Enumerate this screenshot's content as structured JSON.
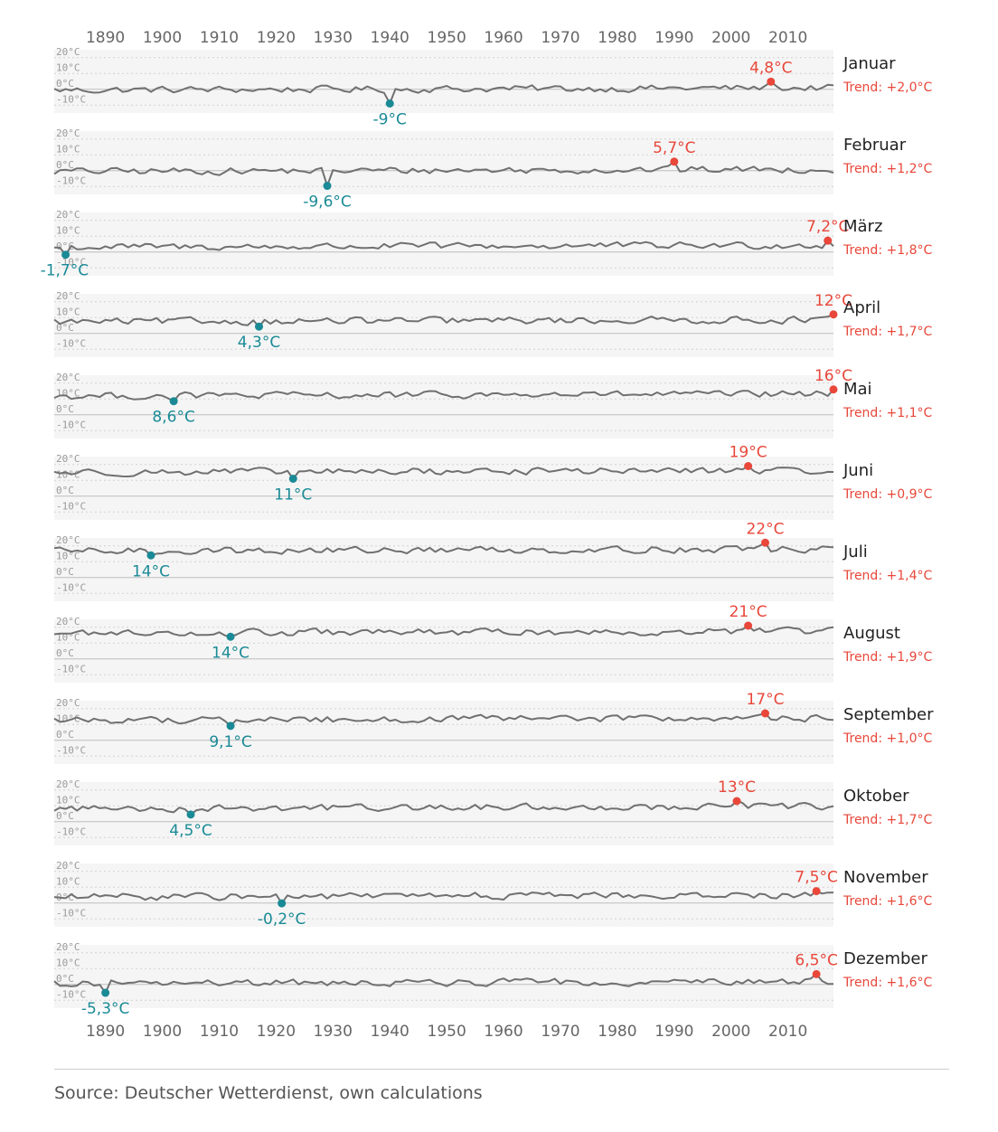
{
  "chart_data": {
    "type": "line",
    "title": "",
    "xlabel": "",
    "ylabel": "",
    "xlim": [
      1881,
      2018
    ],
    "ylim": [
      -15,
      25
    ],
    "x_ticks": [
      "1890",
      "1900",
      "1910",
      "1920",
      "1930",
      "1940",
      "1950",
      "1960",
      "1970",
      "1980",
      "1990",
      "2000",
      "2010"
    ],
    "y_ticks": [
      "20°C",
      "10°C",
      "0°C",
      "-10°C"
    ],
    "colors": {
      "line": "#707070",
      "max": "#e8473a",
      "min": "#1a8a96",
      "band": "#f5f5f5",
      "grid": "#d2d2d2",
      "tick": "#9a9a9a"
    },
    "series": [
      {
        "name": "Januar",
        "trend": "Trend: +2,0°C",
        "mean": 0,
        "max": {
          "year": 2007,
          "value": 4.8,
          "label": "4,8°C"
        },
        "min": {
          "year": 1940,
          "value": -9.0,
          "label": "-9°C"
        }
      },
      {
        "name": "Februar",
        "trend": "Trend: +1,2°C",
        "mean": 0,
        "max": {
          "year": 1990,
          "value": 5.7,
          "label": "5,7°C"
        },
        "min": {
          "year": 1929,
          "value": -9.6,
          "label": "-9,6°C"
        }
      },
      {
        "name": "März",
        "trend": "Trend: +1,8°C",
        "mean": 3.5,
        "max": {
          "year": 2017,
          "value": 7.2,
          "label": "7,2°C"
        },
        "min": {
          "year": 1883,
          "value": -1.7,
          "label": "-1,7°C"
        }
      },
      {
        "name": "April",
        "trend": "Trend: +1,7°C",
        "mean": 7.8,
        "max": {
          "year": 2018,
          "value": 12.0,
          "label": "12°C"
        },
        "min": {
          "year": 1917,
          "value": 4.3,
          "label": "4,3°C"
        }
      },
      {
        "name": "Mai",
        "trend": "Trend: +1,1°C",
        "mean": 12.3,
        "max": {
          "year": 2018,
          "value": 16.0,
          "label": "16°C"
        },
        "min": {
          "year": 1902,
          "value": 8.6,
          "label": "8,6°C"
        }
      },
      {
        "name": "Juni",
        "trend": "Trend: +0,9°C",
        "mean": 15.5,
        "max": {
          "year": 2003,
          "value": 19.0,
          "label": "19°C"
        },
        "min": {
          "year": 1923,
          "value": 11.0,
          "label": "11°C"
        }
      },
      {
        "name": "Juli",
        "trend": "Trend: +1,4°C",
        "mean": 17.2,
        "max": {
          "year": 2006,
          "value": 22.0,
          "label": "22°C"
        },
        "min": {
          "year": 1898,
          "value": 14.0,
          "label": "14°C"
        }
      },
      {
        "name": "August",
        "trend": "Trend: +1,9°C",
        "mean": 16.6,
        "max": {
          "year": 2003,
          "value": 21.0,
          "label": "21°C"
        },
        "min": {
          "year": 1912,
          "value": 14.0,
          "label": "14°C"
        }
      },
      {
        "name": "September",
        "trend": "Trend: +1,0°C",
        "mean": 13.2,
        "max": {
          "year": 2006,
          "value": 17.0,
          "label": "17°C"
        },
        "min": {
          "year": 1912,
          "value": 9.1,
          "label": "9,1°C"
        }
      },
      {
        "name": "Oktober",
        "trend": "Trend: +1,7°C",
        "mean": 8.8,
        "max": {
          "year": 2001,
          "value": 13.0,
          "label": "13°C"
        },
        "min": {
          "year": 1905,
          "value": 4.5,
          "label": "4,5°C"
        }
      },
      {
        "name": "November",
        "trend": "Trend: +1,6°C",
        "mean": 4.3,
        "max": {
          "year": 2015,
          "value": 7.5,
          "label": "7,5°C"
        },
        "min": {
          "year": 1921,
          "value": -0.2,
          "label": "-0,2°C"
        }
      },
      {
        "name": "Dezember",
        "trend": "Trend: +1,6°C",
        "mean": 1.0,
        "max": {
          "year": 2015,
          "value": 6.5,
          "label": "6,5°C"
        },
        "min": {
          "year": 1890,
          "value": -5.3,
          "label": "-5,3°C"
        }
      }
    ]
  },
  "footer": {
    "source": "Source: Deutscher Wetterdienst, own calculations"
  }
}
